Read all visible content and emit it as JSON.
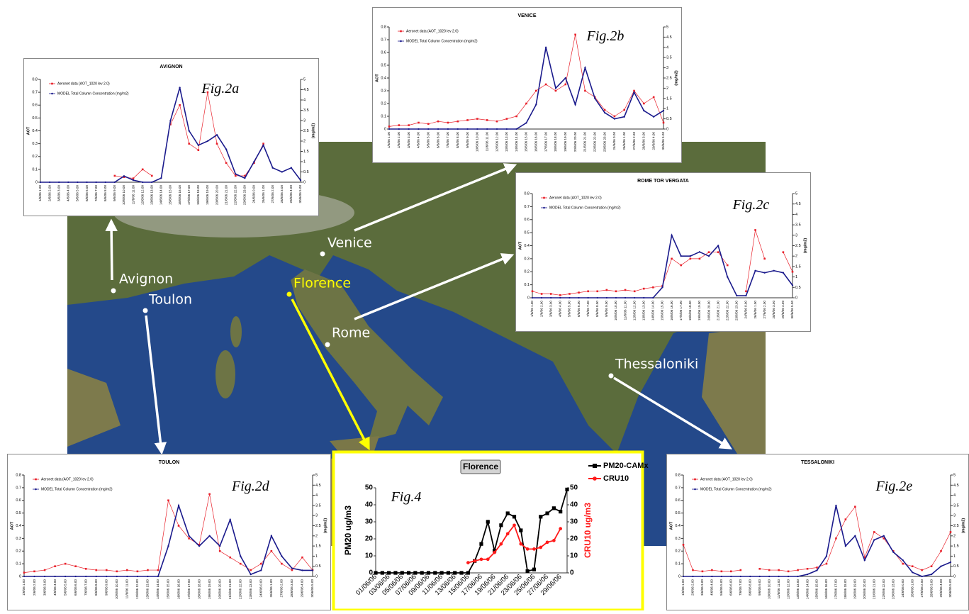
{
  "map": {
    "labels": [
      "Venice",
      "Avignon",
      "Toulon",
      "Florence",
      "Rome",
      "Thessaloniki"
    ]
  },
  "chart_data": [
    {
      "type": "line",
      "title": "AVIGNON",
      "annotation": "Fig.2a",
      "ylabel": "AOT",
      "y2label": "(mg/m2)",
      "legend": "upper left",
      "categories": [
        "1/6/06 1.00",
        "2/6/06 2.00",
        "3/6/06 3.00",
        "4/6/06 4.00",
        "5/6/06 5.00",
        "6/6/06 6.00",
        "7/6/06 7.00",
        "8/6/06 8.00",
        "9/6/06 9.00",
        "10/6/06 10.00",
        "11/6/06 11.00",
        "12/6/06 12.00",
        "13/6/06 13.00",
        "14/6/06 14.00",
        "15/6/06 15.00",
        "16/6/06 16.00",
        "17/6/06 17.00",
        "18/6/06 18.00",
        "19/6/06 19.00",
        "20/6/06 20.00",
        "21/6/06 21.00",
        "22/6/06 22.00",
        "23/6/06 23.00",
        "24/6/06 0.00",
        "26/6/06 1.00",
        "27/6/06 2.00",
        "28/6/06 3.00",
        "29/6/06 4.00",
        "30/6/06 5.00"
      ],
      "series": [
        {
          "name": "Aeronet data (AOT_1020 lev 2.0)",
          "color": "#e8202a",
          "marker": "square",
          "values": [
            null,
            null,
            null,
            null,
            null,
            null,
            null,
            null,
            0.05,
            0.04,
            0.03,
            0.1,
            0.05,
            null,
            0.45,
            0.6,
            0.3,
            0.25,
            0.7,
            0.3,
            0.15,
            0.05,
            0.05,
            0.15,
            0.3,
            null,
            null,
            null,
            null
          ]
        },
        {
          "name": "MODEL Total Column Concentration (mg/m2)",
          "color": "#1a1a8c",
          "marker": "circle",
          "axis": "y2",
          "values": [
            0,
            0,
            0,
            0,
            0,
            0,
            0,
            0,
            0,
            0.3,
            0.1,
            0,
            0,
            0.2,
            3.0,
            4.6,
            2.5,
            1.8,
            2.0,
            2.3,
            1.6,
            0.4,
            0.2,
            1.0,
            1.8,
            0.7,
            0.5,
            0.7,
            0.1
          ]
        }
      ],
      "ylim": [
        0,
        0.8
      ],
      "yticks": [
        0,
        0.1,
        0.2,
        0.3,
        0.4,
        0.5,
        0.6,
        0.7,
        0.8
      ],
      "y2lim": [
        0,
        5
      ],
      "y2ticks": [
        0,
        0.5,
        1,
        1.5,
        2,
        2.5,
        3,
        3.5,
        4,
        4.5,
        5
      ]
    },
    {
      "type": "line",
      "title": "VENICE",
      "annotation": "Fig.2b",
      "ylabel": "AOT",
      "y2label": "(mg/m2)",
      "legend": "upper left",
      "categories": [
        "1/6/06 1.00",
        "2/6/06 2.00",
        "3/6/06 3.00",
        "4/6/06 4.00",
        "5/6/06 5.00",
        "6/6/06 6.00",
        "7/6/06 7.00",
        "8/6/06 8.00",
        "9/6/06 9.00",
        "10/6/06 10.00",
        "11/6/06 11.00",
        "12/6/06 12.00",
        "13/6/06 13.00",
        "14/6/06 14.00",
        "15/6/06 15.00",
        "16/6/06 16.00",
        "17/6/06 17.00",
        "18/6/06 18.00",
        "19/6/06 19.00",
        "20/6/06 20.00",
        "21/6/06 21.00",
        "22/6/06 22.00",
        "23/6/06 23.00",
        "24/6/06 0.00",
        "26/6/06 1.00",
        "27/6/06 2.00",
        "28/6/06 3.00",
        "29/6/06 4.00",
        "30/6/06 5.00"
      ],
      "series": [
        {
          "name": "Aeronet data (AOT_1020 lev 2.0)",
          "color": "#e8202a",
          "marker": "square",
          "values": [
            0.02,
            0.03,
            0.03,
            0.05,
            0.04,
            0.06,
            0.05,
            0.06,
            0.07,
            0.08,
            0.07,
            0.06,
            0.08,
            0.1,
            0.2,
            0.3,
            0.35,
            0.3,
            0.35,
            0.74,
            0.3,
            0.25,
            0.15,
            0.1,
            0.15,
            0.3,
            0.2,
            0.25,
            0.05
          ]
        },
        {
          "name": "MODEL Total Column Concentration (mg/m2)",
          "color": "#1a1a8c",
          "marker": "circle",
          "axis": "y2",
          "values": [
            0,
            0,
            0,
            0,
            0,
            0,
            0,
            0,
            0,
            0,
            0,
            0,
            0,
            0,
            0.3,
            1.2,
            4.0,
            2.0,
            2.5,
            1.2,
            3.0,
            1.5,
            0.8,
            0.5,
            0.6,
            1.8,
            0.9,
            0.6,
            0.9
          ]
        }
      ],
      "ylim": [
        0,
        0.8
      ],
      "yticks": [
        0,
        0.1,
        0.2,
        0.3,
        0.4,
        0.5,
        0.6,
        0.7,
        0.8
      ],
      "y2lim": [
        0,
        5
      ],
      "y2ticks": [
        0,
        0.5,
        1,
        1.5,
        2,
        2.5,
        3,
        3.5,
        4,
        4.5,
        5
      ]
    },
    {
      "type": "line",
      "title": "ROME TOR VERGATA",
      "annotation": "Fig.2c",
      "ylabel": "AOT",
      "y2label": "(mg/m2)",
      "legend": "upper left",
      "categories": [
        "1/6/06 1.00",
        "2/6/06 2.00",
        "3/6/06 3.00",
        "4/6/06 4.00",
        "5/6/06 5.00",
        "6/6/06 6.00",
        "7/6/06 7.00",
        "8/6/06 8.00",
        "9/6/06 9.00",
        "10/6/06 10.00",
        "11/6/06 11.00",
        "12/6/06 12.00",
        "13/6/06 13.00",
        "14/6/06 14.00",
        "15/6/06 15.00",
        "16/6/06 16.00",
        "17/6/06 17.00",
        "18/6/06 18.00",
        "19/6/06 19.00",
        "20/6/06 20.00",
        "21/6/06 21.00",
        "22/6/06 22.00",
        "23/6/06 23.00",
        "24/6/06 0.00",
        "26/6/06 1.00",
        "27/6/06 2.00",
        "28/6/06 3.00",
        "29/6/06 4.00",
        "30/6/06 5.00"
      ],
      "series": [
        {
          "name": "Aeronet data (AOT_1020 lev 2.0)",
          "color": "#e8202a",
          "marker": "square",
          "values": [
            0.05,
            0.03,
            0.03,
            0.02,
            0.03,
            0.04,
            0.05,
            0.05,
            0.06,
            0.05,
            0.06,
            0.05,
            0.07,
            0.08,
            0.09,
            0.3,
            0.25,
            0.3,
            0.3,
            0.35,
            0.35,
            0.25,
            null,
            0.05,
            0.52,
            0.3,
            null,
            0.35,
            0.2
          ]
        },
        {
          "name": "MODEL Total Column Concentration (mg/m2)",
          "color": "#1a1a8c",
          "marker": "circle",
          "axis": "y2",
          "values": [
            0,
            0,
            0,
            0,
            0,
            0,
            0,
            0,
            0,
            0,
            0,
            0,
            0,
            0,
            0.5,
            3.0,
            2.0,
            2.0,
            2.2,
            2.0,
            2.5,
            1.0,
            0.1,
            0.1,
            1.3,
            1.2,
            1.3,
            1.2,
            0.6
          ]
        }
      ],
      "ylim": [
        0,
        0.8
      ],
      "yticks": [
        0,
        0.1,
        0.2,
        0.3,
        0.4,
        0.5,
        0.6,
        0.7,
        0.8
      ],
      "y2lim": [
        0,
        5
      ],
      "y2ticks": [
        0,
        0.5,
        1,
        1.5,
        2,
        2.5,
        3,
        3.5,
        4,
        4.5,
        5
      ]
    },
    {
      "type": "line",
      "title": "TOULON",
      "annotation": "Fig.2d",
      "ylabel": "AOT",
      "y2label": "(mg/m2)",
      "legend": "upper left",
      "categories": [
        "1/6/06 1.00",
        "2/6/06 2.00",
        "3/6/06 3.00",
        "4/6/06 4.00",
        "5/6/06 5.00",
        "6/6/06 6.00",
        "7/6/06 7.00",
        "8/6/06 8.00",
        "9/6/06 9.00",
        "10/6/06 10.00",
        "11/6/06 11.00",
        "12/6/06 12.00",
        "13/6/06 13.00",
        "14/6/06 14.00",
        "15/6/06 15.00",
        "16/6/06 16.00",
        "17/6/06 17.00",
        "18/6/06 18.00",
        "19/6/06 19.00",
        "20/6/06 20.00",
        "21/6/06 21.00",
        "22/6/06 22.00",
        "23/6/06 23.00",
        "24/6/06 0.00",
        "26/6/06 1.00",
        "27/6/06 2.00",
        "28/6/06 3.00",
        "29/6/06 4.00",
        "30/6/06 5.00"
      ],
      "series": [
        {
          "name": "Aeronet data (AOT_1020 lev 2.0)",
          "color": "#e8202a",
          "marker": "square",
          "values": [
            0.03,
            0.04,
            0.05,
            0.08,
            0.1,
            0.08,
            0.06,
            0.05,
            0.05,
            0.04,
            0.05,
            0.04,
            0.05,
            0.05,
            0.6,
            0.4,
            0.3,
            0.25,
            0.65,
            0.2,
            0.15,
            0.1,
            0.05,
            0.1,
            0.2,
            0.1,
            0.05,
            0.15,
            0.05
          ]
        },
        {
          "name": "MODEL Total Column Concentration (mg/m2)",
          "color": "#1a1a8c",
          "marker": "circle",
          "axis": "y2",
          "values": [
            0,
            0,
            0,
            0,
            0,
            0,
            0,
            0,
            0,
            0,
            0,
            0,
            0,
            0,
            1.5,
            3.5,
            2.0,
            1.5,
            2.0,
            1.5,
            2.8,
            1.0,
            0.1,
            0.3,
            2.0,
            1.0,
            0.4,
            0.3,
            0.3
          ]
        }
      ],
      "ylim": [
        0,
        0.8
      ],
      "yticks": [
        0,
        0.1,
        0.2,
        0.3,
        0.4,
        0.5,
        0.6,
        0.7,
        0.8
      ],
      "y2lim": [
        0,
        5
      ],
      "y2ticks": [
        0,
        0.5,
        1,
        1.5,
        2,
        2.5,
        3,
        3.5,
        4,
        4.5,
        5
      ]
    },
    {
      "type": "line",
      "title": "TESSALONIKI",
      "annotation": "Fig.2e",
      "ylabel": "AOT",
      "y2label": "(mg/m2)",
      "legend": "upper left",
      "categories": [
        "1/6/06 1.00",
        "2/6/06 2.00",
        "3/6/06 3.00",
        "4/6/06 4.00",
        "5/6/06 5.00",
        "6/6/06 6.00",
        "7/6/06 7.00",
        "8/6/06 8.00",
        "9/6/06 9.00",
        "10/6/06 10.00",
        "11/6/06 11.00",
        "12/6/06 12.00",
        "13/6/06 13.00",
        "14/6/06 14.00",
        "15/6/06 15.00",
        "16/6/06 16.00",
        "17/6/06 17.00",
        "18/6/06 18.00",
        "19/6/06 19.00",
        "20/6/06 20.00",
        "21/6/06 21.00",
        "22/6/06 22.00",
        "23/6/06 23.00",
        "24/6/06 0.00",
        "26/6/06 1.00",
        "27/6/06 2.00",
        "28/6/06 3.00",
        "29/6/06 4.00",
        "30/6/06 5.00"
      ],
      "series": [
        {
          "name": "Aeronet data (AOT_1020 lev 2.0)",
          "color": "#e8202a",
          "marker": "square",
          "values": [
            0.25,
            0.05,
            0.04,
            0.05,
            0.04,
            0.04,
            0.05,
            null,
            0.06,
            0.05,
            0.05,
            0.04,
            0.05,
            0.06,
            0.07,
            0.1,
            0.3,
            0.45,
            0.55,
            0.15,
            0.35,
            0.3,
            0.2,
            0.1,
            0.08,
            0.05,
            0.08,
            0.2,
            0.35
          ]
        },
        {
          "name": "MODEL Total Column Concentration (mg/m2)",
          "color": "#1a1a8c",
          "marker": "circle",
          "axis": "y2",
          "values": [
            0,
            0,
            0,
            0,
            0,
            0,
            0,
            0,
            0,
            0,
            0,
            0,
            0,
            0.1,
            0.3,
            1.0,
            3.5,
            1.5,
            2.0,
            0.8,
            1.8,
            2.0,
            1.2,
            0.8,
            0.2,
            0,
            0.1,
            0.5,
            0.7
          ]
        }
      ],
      "ylim": [
        0,
        0.8
      ],
      "yticks": [
        0,
        0.1,
        0.2,
        0.3,
        0.4,
        0.5,
        0.6,
        0.7,
        0.8
      ],
      "y2lim": [
        0,
        5
      ],
      "y2ticks": [
        0,
        0.5,
        1,
        1.5,
        2,
        2.5,
        3,
        3.5,
        4,
        4.5,
        5
      ]
    },
    {
      "type": "line",
      "title": "Florence",
      "annotation": "Fig.4",
      "ylabel": "PM20 ug/m3",
      "y2label": "CRU10 ug/m3",
      "legend": "upper right",
      "categories": [
        "01/06/06",
        null,
        "03/06/06",
        null,
        "05/06/06",
        null,
        "07/06/06",
        null,
        "09/06/06",
        null,
        "11/06/06",
        null,
        "13/06/06",
        null,
        "15/06/06",
        null,
        "17/06/06",
        null,
        "19/06/06",
        null,
        "21/06/06",
        null,
        "23/06/06",
        null,
        "25/06/06",
        null,
        "27/06/06",
        null,
        "29/06/06",
        null
      ],
      "series": [
        {
          "name": "PM20-CAMx",
          "color": "#000000",
          "marker": "square",
          "values": [
            0,
            0,
            0,
            0,
            0,
            0,
            0,
            0,
            0,
            0,
            0,
            0,
            0,
            0,
            0,
            7,
            17,
            30,
            13,
            28,
            35,
            33,
            25,
            1,
            2,
            33,
            35,
            38,
            36,
            49
          ]
        },
        {
          "name": "CRU10",
          "color": "#ff1a1a",
          "marker": "circle",
          "axis": "y2",
          "values": [
            null,
            null,
            null,
            null,
            null,
            null,
            null,
            null,
            null,
            null,
            null,
            null,
            null,
            null,
            6,
            7,
            8,
            8,
            12,
            17,
            23,
            28,
            17,
            14,
            14,
            15,
            18,
            19,
            26,
            null
          ]
        }
      ],
      "ylim": [
        0,
        50
      ],
      "yticks": [
        0,
        10,
        20,
        30,
        40,
        50
      ],
      "y2lim": [
        0,
        50
      ],
      "y2ticks": [
        0,
        10,
        20,
        30,
        40,
        50
      ]
    }
  ]
}
